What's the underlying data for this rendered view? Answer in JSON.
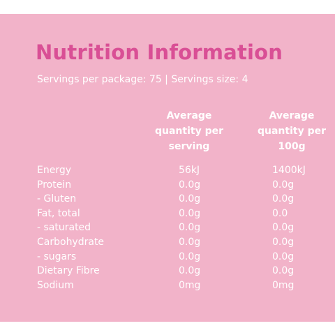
{
  "title": "Nutrition Information",
  "servings_line": "Servings per package: 75  |  Servings size: 4",
  "columns": {
    "per_serving": "Average quantity per serving",
    "per_100g": "Average quantity per 100g"
  },
  "rows": [
    {
      "label": "Energy",
      "per_serving": "56kJ",
      "per_100g": "1400kJ"
    },
    {
      "label": "Protein",
      "per_serving": "0.0g",
      "per_100g": "0.0g"
    },
    {
      "label": "- Gluten",
      "per_serving": "0.0g",
      "per_100g": "0.0g"
    },
    {
      "label": "Fat, total",
      "per_serving": "0.0g",
      "per_100g": "0.0"
    },
    {
      "label": "- saturated",
      "per_serving": "0.0g",
      "per_100g": "0.0g"
    },
    {
      "label": "Carbohydrate",
      "per_serving": "0.0g",
      "per_100g": "0.0g"
    },
    {
      "label": "- sugars",
      "per_serving": "0.0g",
      "per_100g": "0.0g"
    },
    {
      "label": "Dietary Fibre",
      "per_serving": "0.0g",
      "per_100g": "0.0g"
    },
    {
      "label": "Sodium",
      "per_serving": "0mg",
      "per_100g": "0mg"
    }
  ],
  "colors": {
    "panel_background": "#f2b3c9",
    "title": "#d94f95",
    "text": "#ffffff"
  }
}
